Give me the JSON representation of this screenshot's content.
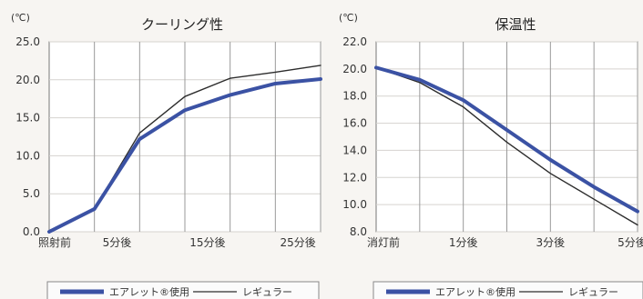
{
  "chart_data": [
    {
      "type": "line",
      "title": "クーリング性",
      "unit": "(℃)",
      "ylim": [
        0,
        25
      ],
      "y_ticks": [
        "0.0",
        "5.0",
        "10.0",
        "15.0",
        "20.0",
        "25.0"
      ],
      "x_tick_labels": [
        "照射前",
        "5分後",
        "15分後",
        "25分後"
      ],
      "x": [
        0,
        5,
        10,
        15,
        20,
        25,
        30
      ],
      "series": [
        {
          "name": "エアレット®使用",
          "style": "thick",
          "color": "#3b52a4",
          "values": [
            0.0,
            3.0,
            12.2,
            16.0,
            18.0,
            19.5,
            20.1
          ]
        },
        {
          "name": "レギュラー",
          "style": "thin",
          "color": "#2c2c2c",
          "values": [
            0.0,
            3.0,
            13.0,
            17.8,
            20.2,
            21.0,
            21.9
          ]
        }
      ],
      "grid": true,
      "legend_position": "bottom"
    },
    {
      "type": "line",
      "title": "保温性",
      "unit": "(℃)",
      "ylim": [
        8,
        22
      ],
      "y_ticks": [
        "8.0",
        "10.0",
        "12.0",
        "14.0",
        "16.0",
        "18.0",
        "20.0",
        "22.0"
      ],
      "x_tick_labels": [
        "消灯前",
        "1分後",
        "3分後",
        "5分後"
      ],
      "x": [
        0,
        1,
        2,
        3,
        4,
        5,
        6
      ],
      "series": [
        {
          "name": "エアレット®使用",
          "style": "thick",
          "color": "#3b52a4",
          "values": [
            20.1,
            19.2,
            17.7,
            15.5,
            13.3,
            11.3,
            9.5
          ]
        },
        {
          "name": "レギュラー",
          "style": "thin",
          "color": "#2c2c2c",
          "values": [
            20.1,
            19.0,
            17.2,
            14.6,
            12.3,
            10.4,
            8.5
          ]
        }
      ],
      "grid": true,
      "legend_position": "bottom"
    }
  ]
}
